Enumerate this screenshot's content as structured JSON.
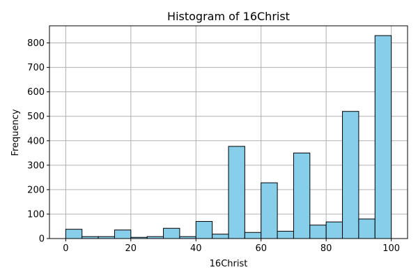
{
  "chart_data": {
    "type": "bar",
    "title": "Histogram of 16Christ",
    "xlabel": "16Christ",
    "ylabel": "Frequency",
    "xlim": [
      -5,
      105
    ],
    "ylim": [
      0,
      870
    ],
    "xticks": [
      0,
      20,
      40,
      60,
      80,
      100
    ],
    "yticks": [
      0,
      100,
      200,
      300,
      400,
      500,
      600,
      700,
      800
    ],
    "grid": true,
    "bar_color": "#87ceeb",
    "edge_color": "#000000",
    "bin_edges": [
      0,
      5,
      10,
      15,
      20,
      25,
      30,
      35,
      40,
      45,
      50,
      55,
      60,
      65,
      70,
      75,
      80,
      85,
      90,
      95,
      100
    ],
    "values": [
      38,
      8,
      8,
      35,
      5,
      8,
      42,
      8,
      70,
      18,
      377,
      25,
      228,
      30,
      350,
      55,
      68,
      520,
      80,
      830
    ]
  }
}
